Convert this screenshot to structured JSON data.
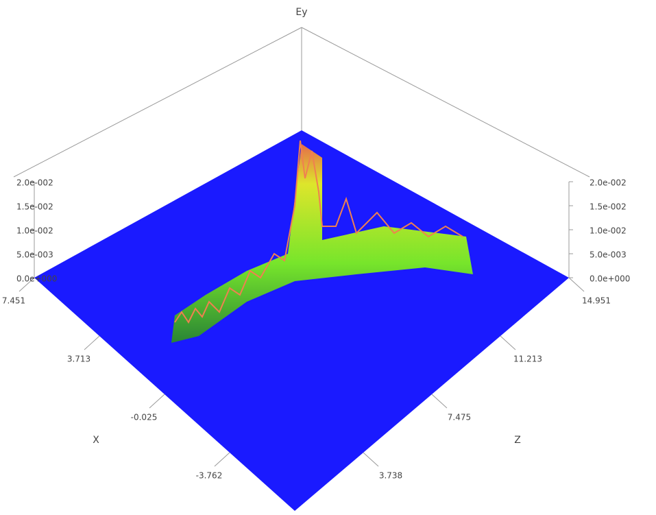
{
  "chart_data": {
    "type": "surface3d",
    "x_label": "X",
    "y_label": "Ey",
    "z_label": "Z",
    "xlim": [
      -7.5,
      7.451
    ],
    "xticks": [
      7.451,
      3.713,
      -0.025,
      -3.762
    ],
    "zlim": [
      0,
      14.951
    ],
    "zticks": [
      14.951,
      11.213,
      7.475,
      3.738
    ],
    "ylim": [
      0,
      0.02
    ],
    "yticks": [
      {
        "value": 0,
        "label": "0.0e+000"
      },
      {
        "value": 0.005,
        "label": "5.0e-003"
      },
      {
        "value": 0.01,
        "label": "1.0e-002"
      },
      {
        "value": 0.015,
        "label": "1.5e-002"
      },
      {
        "value": 0.02,
        "label": "2.0e-002"
      }
    ],
    "color": "#1a1aff"
  }
}
